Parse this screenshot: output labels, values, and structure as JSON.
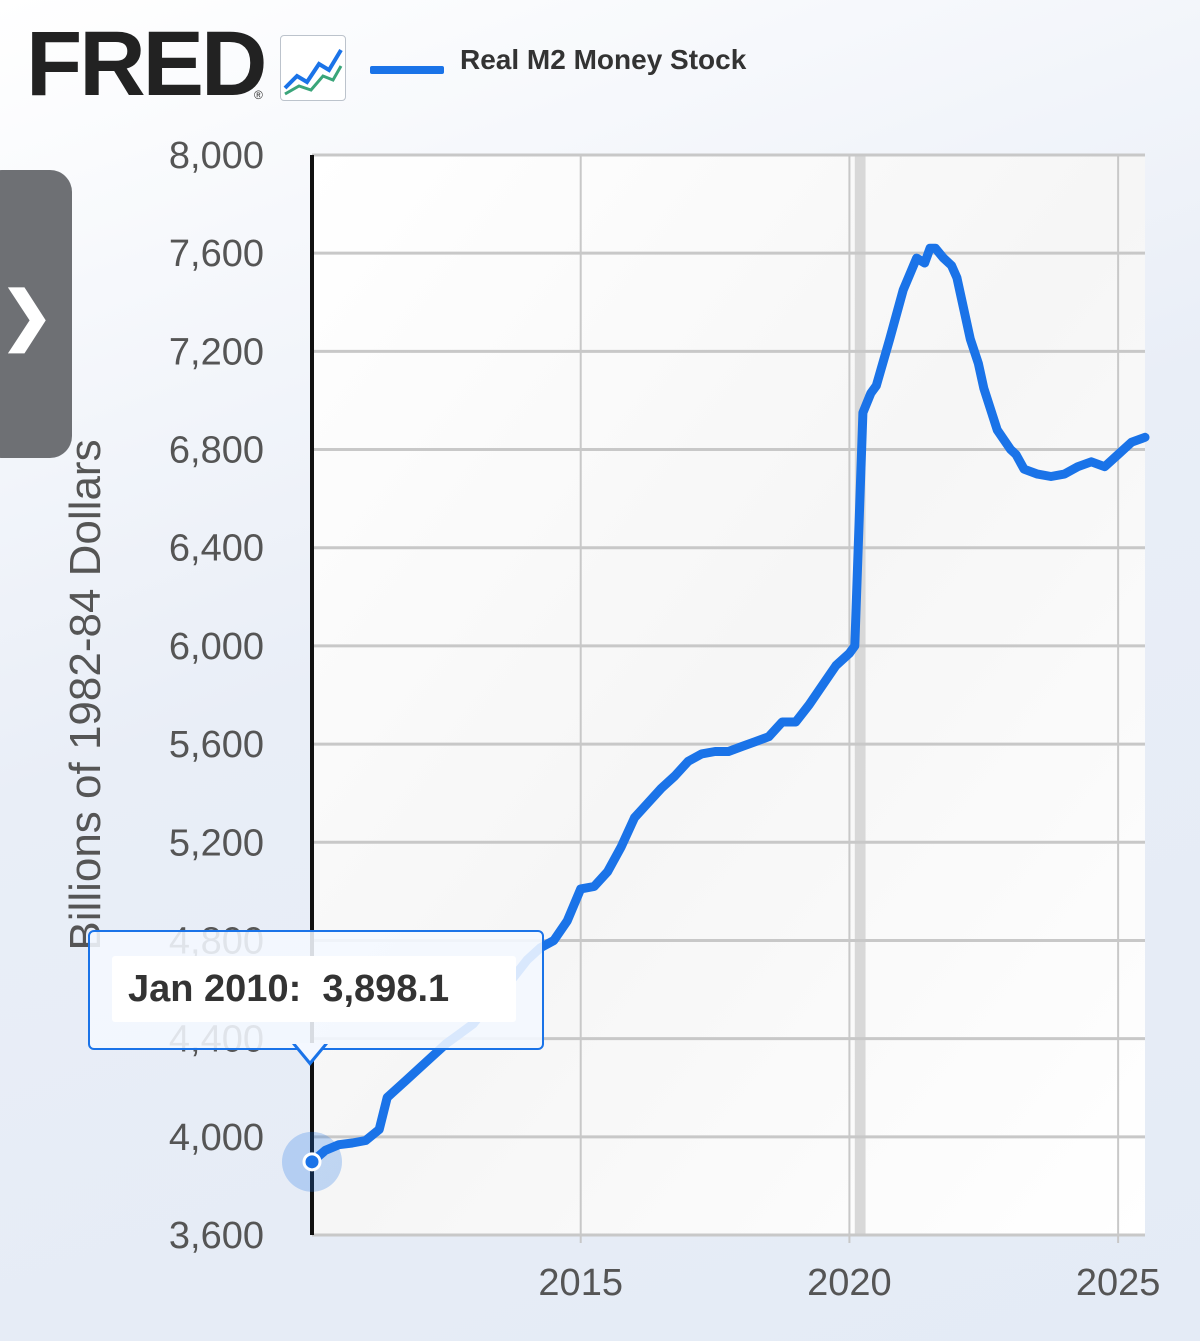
{
  "header": {
    "logo_text": "FRED",
    "logo_mark": "®",
    "graph_icon": "line-chart-icon",
    "legend_label": "Real M2 Money Stock"
  },
  "side_tab": {
    "icon": "chevron-right-icon",
    "glyph": "❯"
  },
  "tooltip": {
    "date": "Jan 2010:",
    "value": "3,898.1"
  },
  "colors": {
    "series": "#1a73e8",
    "tooltip_border": "#1a73e8",
    "grid": "#c8c8c8",
    "text": "#555555"
  },
  "chart_data": {
    "type": "line",
    "ylabel": "Billions of 1982-84 Dollars",
    "ylim": [
      3600,
      8000
    ],
    "xlim": [
      2010.0,
      2025.5
    ],
    "y_ticks": [
      "3,600",
      "4,000",
      "4,400",
      "4,800",
      "5,200",
      "5,600",
      "6,000",
      "6,400",
      "6,800",
      "7,200",
      "7,600",
      "8,000"
    ],
    "y_tick_values": [
      3600,
      4000,
      4400,
      4800,
      5200,
      5600,
      6000,
      6400,
      6800,
      7200,
      7600,
      8000
    ],
    "x_ticks": [
      "2015",
      "2020",
      "2025"
    ],
    "x_tick_values": [
      2015,
      2020,
      2025
    ],
    "grid": true,
    "recession_band": [
      2020.1,
      2020.3
    ],
    "series": [
      {
        "name": "Real M2 Money Stock",
        "x": [
          2010.0,
          2010.25,
          2010.5,
          2010.75,
          2011.0,
          2011.25,
          2011.4,
          2011.5,
          2011.75,
          2012.0,
          2012.25,
          2012.5,
          2012.75,
          2013.0,
          2013.25,
          2013.5,
          2013.75,
          2014.0,
          2014.25,
          2014.5,
          2014.75,
          2015.0,
          2015.25,
          2015.5,
          2015.75,
          2016.0,
          2016.25,
          2016.5,
          2016.75,
          2017.0,
          2017.25,
          2017.5,
          2017.75,
          2018.0,
          2018.25,
          2018.5,
          2018.75,
          2019.0,
          2019.25,
          2019.5,
          2019.75,
          2020.0,
          2020.1,
          2020.25,
          2020.4,
          2020.5,
          2020.75,
          2021.0,
          2021.25,
          2021.4,
          2021.5,
          2021.6,
          2021.75,
          2021.9,
          2022.0,
          2022.25,
          2022.4,
          2022.5,
          2022.75,
          2023.0,
          2023.1,
          2023.25,
          2023.5,
          2023.75,
          2024.0,
          2024.25,
          2024.5,
          2024.75,
          2025.0,
          2025.25,
          2025.5
        ],
        "y": [
          3898.1,
          3945,
          3968,
          3975,
          3985,
          4030,
          4160,
          4180,
          4230,
          4280,
          4330,
          4380,
          4420,
          4460,
          4530,
          4590,
          4650,
          4720,
          4770,
          4800,
          4880,
          5010,
          5020,
          5080,
          5180,
          5300,
          5360,
          5420,
          5470,
          5530,
          5560,
          5570,
          5570,
          5590,
          5610,
          5630,
          5690,
          5690,
          5760,
          5840,
          5920,
          5970,
          6000,
          6950,
          7030,
          7060,
          7250,
          7450,
          7580,
          7560,
          7620,
          7620,
          7580,
          7550,
          7500,
          7250,
          7150,
          7050,
          6880,
          6800,
          6780,
          6720,
          6700,
          6690,
          6700,
          6730,
          6750,
          6730,
          6780,
          6830,
          6850
        ]
      }
    ]
  }
}
